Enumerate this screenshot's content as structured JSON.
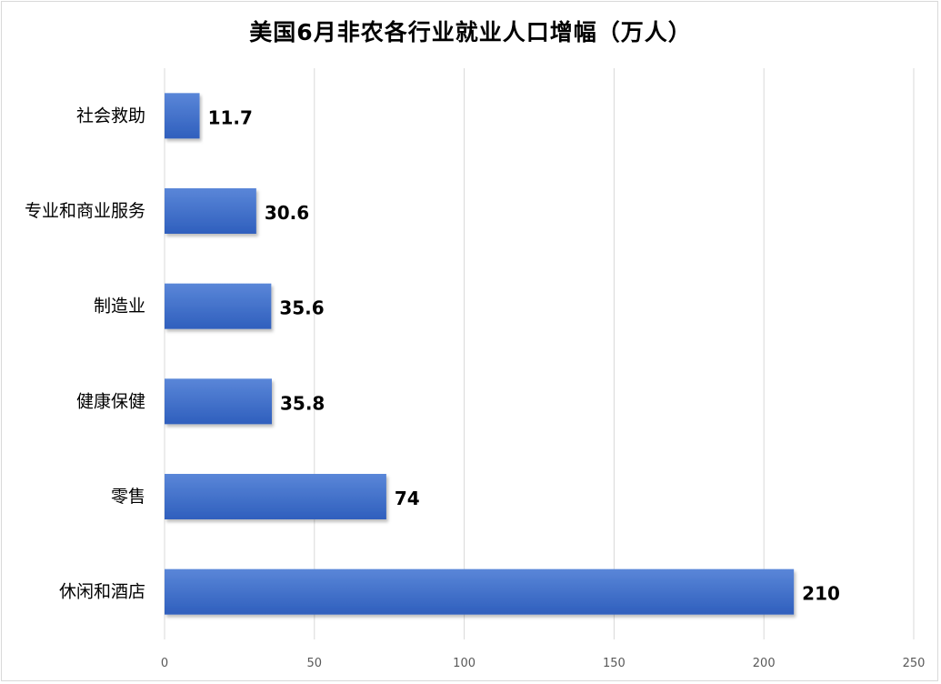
{
  "chart_data": {
    "type": "bar",
    "orientation": "horizontal",
    "title": "美国6月非农各行业就业人口增幅（万人）",
    "categories": [
      "社会救助",
      "专业和商业服务",
      "制造业",
      "健康保健",
      "零售",
      "休闲和酒店"
    ],
    "values": [
      11.7,
      30.6,
      35.6,
      35.8,
      74,
      210
    ],
    "value_labels": [
      "11.7",
      "30.6",
      "35.6",
      "35.8",
      "74",
      "210"
    ],
    "xlim": [
      0,
      250
    ],
    "x_ticks": [
      0,
      50,
      100,
      150,
      200,
      250
    ],
    "x_tick_labels": [
      "0",
      "50",
      "100",
      "150",
      "200",
      "250"
    ],
    "grid": "vertical",
    "legend": "none",
    "colors": {
      "bar_top": "#5a86d8",
      "bar_bottom": "#2f5fbd",
      "grid": "#d9d9d9"
    }
  }
}
